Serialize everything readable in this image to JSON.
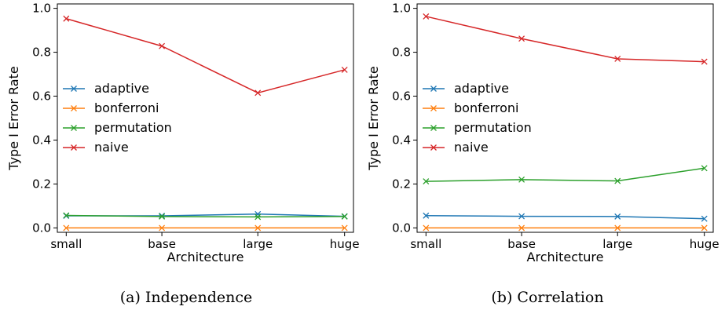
{
  "chart_data": [
    {
      "type": "line",
      "caption": "(a) Independence",
      "xlabel": "Architecture",
      "ylabel": "Type I Error Rate",
      "categories": [
        "small",
        "base",
        "large",
        "huge"
      ],
      "ylim": [
        -0.02,
        1.02
      ],
      "yticks": [
        "0.0",
        "0.2",
        "0.4",
        "0.6",
        "0.8",
        "1.0"
      ],
      "legend_position": "center-left",
      "series": [
        {
          "name": "adaptive",
          "color": "#1f77b4",
          "values": [
            0.055,
            0.055,
            0.063,
            0.053
          ]
        },
        {
          "name": "bonferroni",
          "color": "#ff7f0e",
          "values": [
            0.0,
            0.0,
            0.0,
            0.0
          ]
        },
        {
          "name": "permutation",
          "color": "#2ca02c",
          "values": [
            0.057,
            0.052,
            0.05,
            0.052
          ]
        },
        {
          "name": "naive",
          "color": "#d62728",
          "values": [
            0.953,
            0.828,
            0.615,
            0.72
          ]
        }
      ]
    },
    {
      "type": "line",
      "caption": "(b) Correlation",
      "xlabel": "Architecture",
      "ylabel": "Type I Error Rate",
      "categories": [
        "small",
        "base",
        "large",
        "huge"
      ],
      "ylim": [
        -0.02,
        1.02
      ],
      "yticks": [
        "0.0",
        "0.2",
        "0.4",
        "0.6",
        "0.8",
        "1.0"
      ],
      "legend_position": "center-left",
      "series": [
        {
          "name": "adaptive",
          "color": "#1f77b4",
          "values": [
            0.056,
            0.053,
            0.052,
            0.042
          ]
        },
        {
          "name": "bonferroni",
          "color": "#ff7f0e",
          "values": [
            0.0,
            0.0,
            0.0,
            0.0
          ]
        },
        {
          "name": "permutation",
          "color": "#2ca02c",
          "values": [
            0.212,
            0.22,
            0.214,
            0.272
          ]
        },
        {
          "name": "naive",
          "color": "#d62728",
          "values": [
            0.963,
            0.862,
            0.77,
            0.757
          ]
        }
      ]
    }
  ]
}
